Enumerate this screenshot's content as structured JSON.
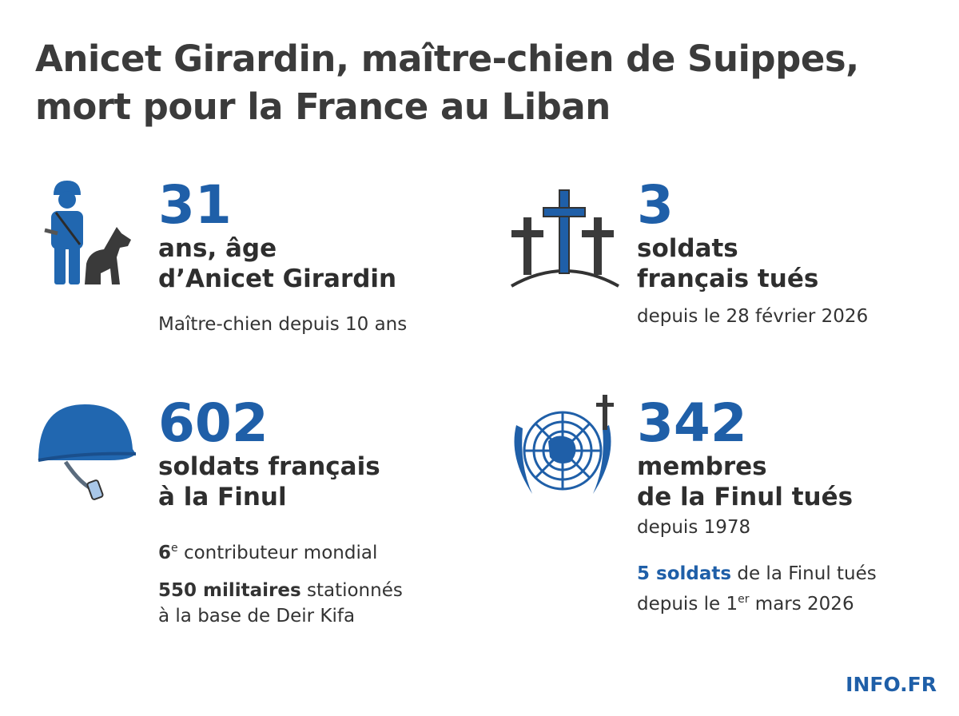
{
  "title": [
    "Anicet Girardin, maître-chien de Suippes,",
    "mort pour la France au Liban"
  ],
  "stats": [
    {
      "number": 31,
      "label": [
        "ans, âge",
        "d’Anicet Girardin"
      ],
      "notes": [
        [
          [
            {
              "text": "Maître-chien depuis 10 ans"
            }
          ]
        ]
      ]
    },
    {
      "number": 3,
      "label": [
        "soldats",
        "français tués"
      ],
      "notes": [
        [
          [
            {
              "text": "depuis le 28 février 2026"
            }
          ]
        ]
      ]
    },
    {
      "number": 602,
      "label": [
        "soldats français",
        "à la Finul"
      ],
      "notes": [
        [
          [
            {
              "text": "6",
              "style": "bold"
            },
            {
              "text": "e",
              "style": "sup"
            },
            {
              "text": " contributeur mondial"
            }
          ]
        ],
        [
          [
            {
              "text": "550 militaires",
              "style": "bold"
            },
            {
              "text": " stationnés"
            }
          ],
          [
            {
              "text": "à la base de Deir Kifa"
            }
          ]
        ]
      ]
    },
    {
      "number": 342,
      "label": [
        "membres",
        "de la Finul tués"
      ],
      "notes": [
        [
          [
            {
              "text": "depuis 1978"
            }
          ]
        ],
        [
          [
            {
              "text": "5 soldats",
              "style": "highlight"
            },
            {
              "text": " de la Finul tués"
            }
          ],
          [
            {
              "text": "depuis le 1"
            },
            {
              "text": "er",
              "style": "sup"
            },
            {
              "text": " mars 2026"
            }
          ]
        ]
      ]
    }
  ],
  "source": "INFO.FR"
}
